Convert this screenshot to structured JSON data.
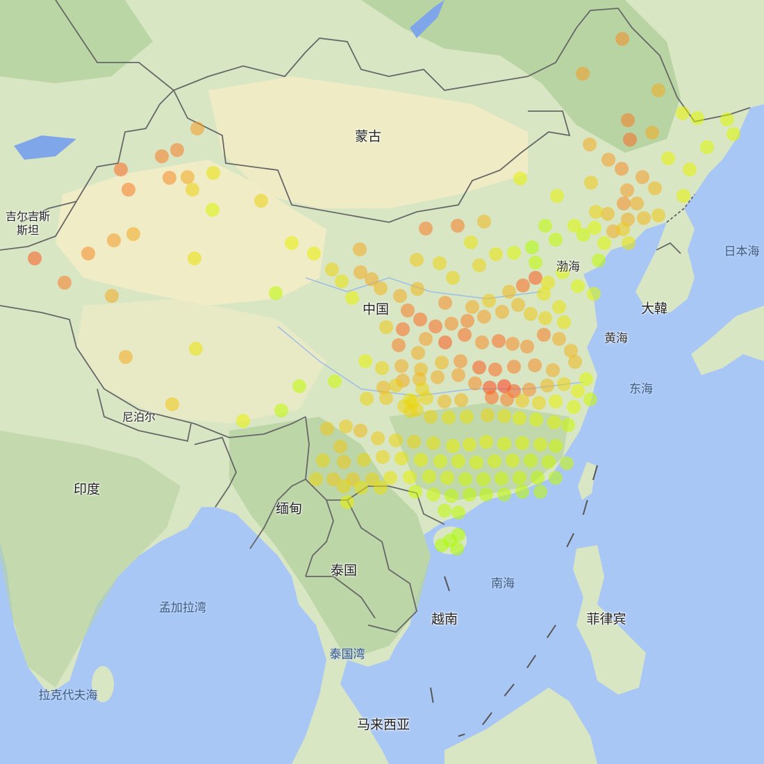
{
  "map": {
    "labels": {
      "mongolia": "蒙古",
      "china": "中国",
      "india": "印度",
      "nepal": "尼泊尔",
      "myanmar": "缅甸",
      "thailand": "泰国",
      "vietnam": "越南",
      "philippines": "菲律宾",
      "malaysia": "马来西亚",
      "korea": "大韓",
      "kyrgyzstan_line1": "吉尔吉斯",
      "kyrgyzstan_line2": "斯坦",
      "bohai": "渤海",
      "yellow_sea": "黄海",
      "east_sea": "东海",
      "sea_of_japan": "日本海",
      "south_sea": "南海",
      "bay_of_bengal": "孟加拉湾",
      "gulf_of_thailand": "泰国湾",
      "laccadive_sea": "拉克代夫海"
    },
    "colors": {
      "ocean": "#a9c7f5",
      "land": "#d9e6c4",
      "desert": "#f2ecc6",
      "forest": "#b5d2a0",
      "border": "#666666",
      "heat_low": "#7fff00",
      "heat_high": "#ff2a1a"
    },
    "heat_legend_note": "dot color = intensity (green low, red high)"
  }
}
